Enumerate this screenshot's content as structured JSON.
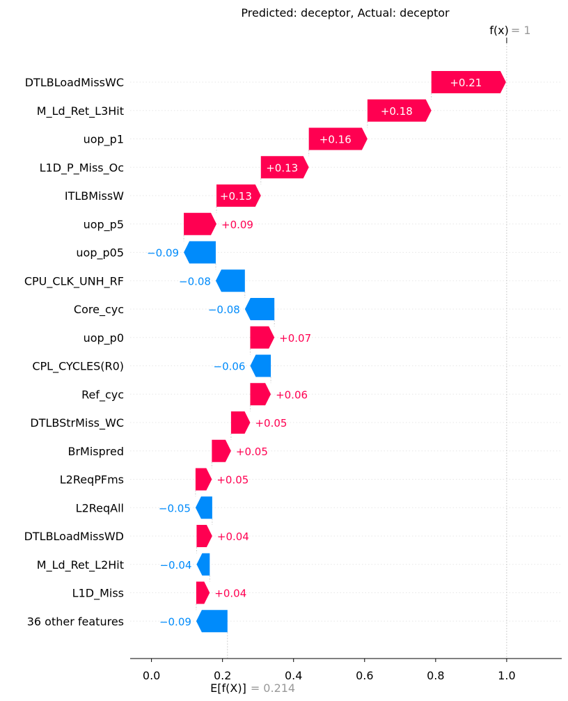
{
  "chart_data": {
    "type": "waterfall",
    "title": "Predicted: deceptor, Actual: deceptor",
    "base_value": 0.214,
    "final_value": 1,
    "fx_label": "f(x)",
    "fx_value_label": "= 1",
    "efx_label": "E[f(X)]",
    "efx_value_label": "= 0.214",
    "x_ticks": [
      "0.0",
      "0.2",
      "0.4",
      "0.6",
      "0.8",
      "1.0"
    ],
    "x_tick_values": [
      0.0,
      0.2,
      0.4,
      0.6,
      0.8,
      1.0
    ],
    "xlim": [
      -0.06,
      1.155
    ],
    "features": [
      {
        "name": "DTLBLoadMissWC",
        "value": 0.21,
        "label": "+0.21"
      },
      {
        "name": "M_Ld_Ret_L3Hit",
        "value": 0.18,
        "label": "+0.18"
      },
      {
        "name": "uop_p1",
        "value": 0.165,
        "label": "+0.16"
      },
      {
        "name": "L1D_P_Miss_Oc",
        "value": 0.135,
        "label": "+0.13"
      },
      {
        "name": "ITLBMissW",
        "value": 0.125,
        "label": "+0.13"
      },
      {
        "name": "uop_p5",
        "value": 0.092,
        "label": "+0.09"
      },
      {
        "name": "uop_p05",
        "value": -0.09,
        "label": "−0.09"
      },
      {
        "name": "CPU_CLK_UNH_RF",
        "value": -0.082,
        "label": "−0.08"
      },
      {
        "name": "Core_cyc",
        "value": -0.083,
        "label": "−0.08"
      },
      {
        "name": "uop_p0",
        "value": 0.068,
        "label": "+0.07"
      },
      {
        "name": "CPL_CYCLES(R0)",
        "value": -0.058,
        "label": "−0.06"
      },
      {
        "name": "Ref_cyc",
        "value": 0.058,
        "label": "+0.06"
      },
      {
        "name": "DTLBStrMiss_WC",
        "value": 0.054,
        "label": "+0.05"
      },
      {
        "name": "BrMispred",
        "value": 0.054,
        "label": "+0.05"
      },
      {
        "name": "L2ReqPFms",
        "value": 0.046,
        "label": "+0.05"
      },
      {
        "name": "L2ReqAll",
        "value": -0.047,
        "label": "−0.05"
      },
      {
        "name": "DTLBLoadMissWD",
        "value": 0.044,
        "label": "+0.04"
      },
      {
        "name": "M_Ld_Ret_L2Hit",
        "value": -0.037,
        "label": "−0.04"
      },
      {
        "name": "L1D_Miss",
        "value": 0.038,
        "label": "+0.04"
      },
      {
        "name": "36 other features",
        "value": -0.088,
        "label": "−0.09"
      }
    ],
    "colors": {
      "positive": "#ff0051",
      "negative": "#008bfb",
      "axis": "#000000",
      "muted": "#999999"
    }
  }
}
